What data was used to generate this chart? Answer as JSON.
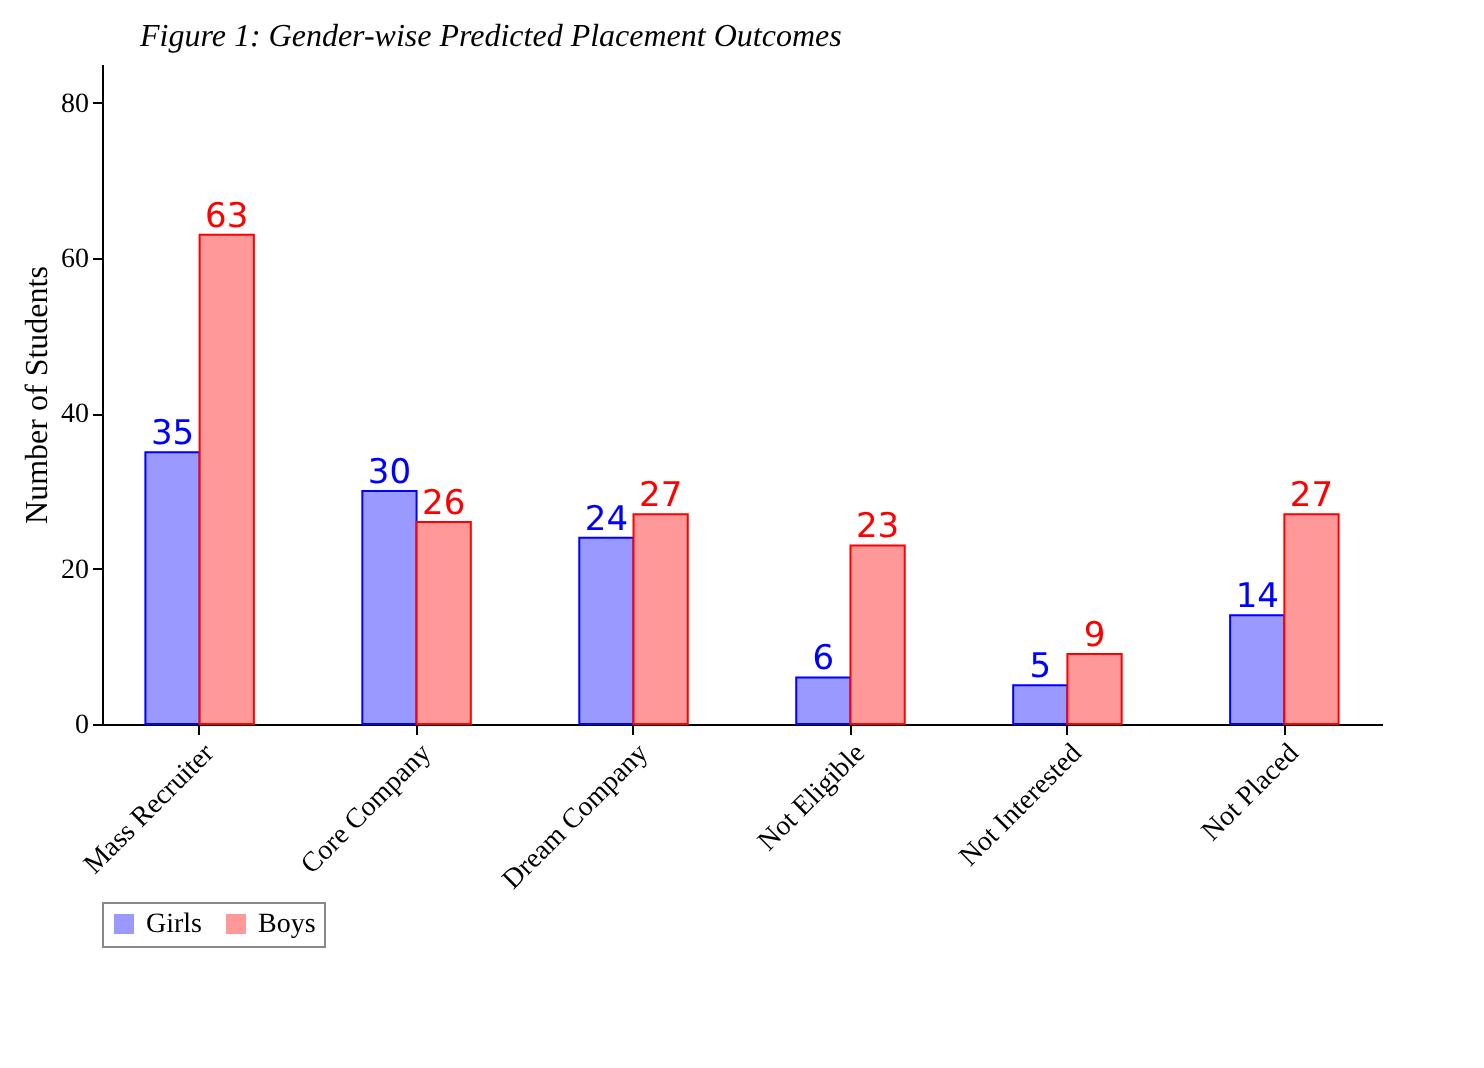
{
  "chart_data": {
    "type": "bar",
    "title": "Figure 1: Gender-wise Predicted Placement Outcomes",
    "ylabel": "Number of Students",
    "categories": [
      "Mass Recruiter",
      "Core Company",
      "Dream Company",
      "Not Eligible",
      "Not Interested",
      "Not Placed"
    ],
    "series": [
      {
        "name": "Girls",
        "color": "#9999ff",
        "values": [
          35,
          30,
          24,
          6,
          5,
          14
        ]
      },
      {
        "name": "Boys",
        "color": "#ff9999",
        "values": [
          63,
          26,
          27,
          23,
          9,
          27
        ]
      }
    ],
    "ylim": [
      0,
      85
    ],
    "yticks": [
      0,
      20,
      40,
      60,
      80
    ],
    "data_labels": true,
    "legend": "bottom",
    "grid": false
  }
}
